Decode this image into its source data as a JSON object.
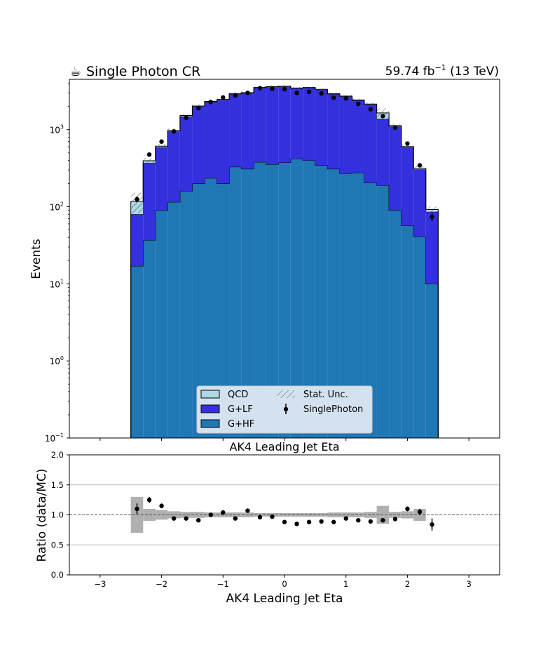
{
  "header": {
    "title_icon": "coffee-icon",
    "title_glyph": "☕",
    "title": "Single Photon CR",
    "lumi_value": "59.74 fb",
    "lumi_exp": "−1",
    "lumi_energy": " (13 TeV)"
  },
  "chart_data": [
    {
      "type": "bar",
      "stacked": true,
      "yscale": "log",
      "ylabel": "Events",
      "xlabel": "AK4 Leading Jet Eta",
      "xlim": [
        -3.5,
        3.5
      ],
      "ylim": [
        0.1,
        4500
      ],
      "x_ticks": [
        -3,
        -2,
        -1,
        0,
        1,
        2,
        3
      ],
      "y_ticks": [
        {
          "value": 0.1,
          "base": "10",
          "exp": "−1"
        },
        {
          "value": 1,
          "base": "10",
          "exp": "0"
        },
        {
          "value": 10,
          "base": "10",
          "exp": "1"
        },
        {
          "value": 100,
          "base": "10",
          "exp": "2"
        },
        {
          "value": 1000,
          "base": "10",
          "exp": "3"
        }
      ],
      "bin_edges": [
        -2.5,
        -2.3,
        -2.1,
        -1.9,
        -1.7,
        -1.5,
        -1.3,
        -1.1,
        -0.9,
        -0.7,
        -0.5,
        -0.3,
        -0.1,
        0.1,
        0.3,
        0.5,
        0.7,
        0.9,
        1.1,
        1.3,
        1.5,
        1.7,
        1.9,
        2.1,
        2.3,
        2.5
      ],
      "series": [
        {
          "name": "G+HF",
          "color": "#1f77b4",
          "values": [
            17,
            37,
            90,
            115,
            160,
            200,
            235,
            200,
            330,
            310,
            380,
            355,
            375,
            420,
            400,
            345,
            310,
            270,
            275,
            205,
            190,
            90,
            57,
            41,
            10
          ]
        },
        {
          "name": "G+LF",
          "color": "#3430dd",
          "values": [
            63,
            333,
            500,
            835,
            1325,
            1800,
            2065,
            2230,
            2580,
            2680,
            3130,
            3245,
            3245,
            3030,
            3100,
            2955,
            2590,
            2430,
            2125,
            1915,
            1190,
            1010,
            533,
            264,
            76
          ]
        },
        {
          "name": "QCD",
          "color": "#add8e6",
          "values": [
            37,
            25,
            20,
            30,
            45,
            30,
            25,
            40,
            30,
            30,
            20,
            30,
            40,
            20,
            30,
            35,
            25,
            30,
            30,
            30,
            270,
            30,
            15,
            10,
            6
          ]
        }
      ],
      "stat_unc_label": "Stat. Unc.",
      "stat_unc_rel": [
        0.3,
        0.08,
        0.07,
        0.06,
        0.05,
        0.05,
        0.04,
        0.04,
        0.04,
        0.04,
        0.03,
        0.03,
        0.03,
        0.03,
        0.03,
        0.03,
        0.04,
        0.04,
        0.04,
        0.05,
        0.15,
        0.05,
        0.06,
        0.08,
        0.1
      ],
      "data": {
        "name": "SinglePhoton",
        "x": [
          -2.4,
          -2.2,
          -2.0,
          -1.8,
          -1.6,
          -1.4,
          -1.2,
          -1.0,
          -0.8,
          -0.6,
          -0.4,
          -0.2,
          0.0,
          0.2,
          0.4,
          0.6,
          0.8,
          1.0,
          1.2,
          1.4,
          1.6,
          1.8,
          2.0,
          2.2,
          2.4
        ],
        "y": [
          125,
          475,
          700,
          950,
          1430,
          1900,
          2280,
          2620,
          2780,
          3000,
          3460,
          3400,
          3350,
          3000,
          3100,
          2950,
          2600,
          2550,
          2160,
          1840,
          1500,
          1060,
          660,
          345,
          74
        ]
      },
      "legend": {
        "position": "lower-center",
        "columns": 2,
        "entries": [
          "QCD",
          "Stat. Unc.",
          "G+LF",
          "SinglePhoton",
          "G+HF"
        ]
      }
    },
    {
      "type": "scatter",
      "title": "AK4 Leading Jet Eta",
      "xlabel": "AK4 Leading Jet Eta",
      "ylabel": "Ratio (data/MC)",
      "xlim": [
        -3.5,
        3.5
      ],
      "ylim": [
        0.0,
        2.0
      ],
      "x_ticks": [
        -3,
        -2,
        -1,
        0,
        1,
        2,
        3
      ],
      "x_tick_labels": [
        "−3",
        "−2",
        "−1",
        "0",
        "1",
        "2",
        "3"
      ],
      "y_ticks": [
        0.0,
        0.5,
        1.0,
        1.5,
        2.0
      ],
      "y_tick_labels": [
        "0.0",
        "0.5",
        "1.0",
        "1.5",
        "2.0"
      ],
      "grid_y": [
        0.5,
        1.5
      ],
      "reference_line": 1.0,
      "x": [
        -2.4,
        -2.2,
        -2.0,
        -1.8,
        -1.6,
        -1.4,
        -1.2,
        -1.0,
        -0.8,
        -0.6,
        -0.4,
        -0.2,
        0.0,
        0.2,
        0.4,
        0.6,
        0.8,
        1.0,
        1.2,
        1.4,
        1.6,
        1.8,
        2.0,
        2.2,
        2.4
      ],
      "ratio": [
        1.1,
        1.25,
        1.15,
        0.94,
        0.94,
        0.91,
        1.0,
        1.04,
        0.94,
        1.07,
        0.96,
        0.97,
        0.88,
        0.85,
        0.88,
        0.89,
        0.88,
        0.94,
        0.91,
        0.89,
        0.91,
        0.93,
        1.1,
        1.05,
        0.84
      ],
      "ratio_err": [
        0.09,
        0.05,
        0.04,
        0.03,
        0.03,
        0.03,
        0.02,
        0.02,
        0.02,
        0.02,
        0.02,
        0.02,
        0.02,
        0.02,
        0.02,
        0.02,
        0.02,
        0.02,
        0.02,
        0.02,
        0.03,
        0.03,
        0.04,
        0.05,
        0.1
      ],
      "mc_unc_band": {
        "color": "#b0b0b0",
        "rel": [
          0.3,
          0.1,
          0.08,
          0.06,
          0.05,
          0.05,
          0.04,
          0.04,
          0.04,
          0.04,
          0.03,
          0.03,
          0.03,
          0.03,
          0.03,
          0.03,
          0.04,
          0.04,
          0.04,
          0.05,
          0.15,
          0.05,
          0.06,
          0.1,
          0.0
        ]
      }
    }
  ]
}
